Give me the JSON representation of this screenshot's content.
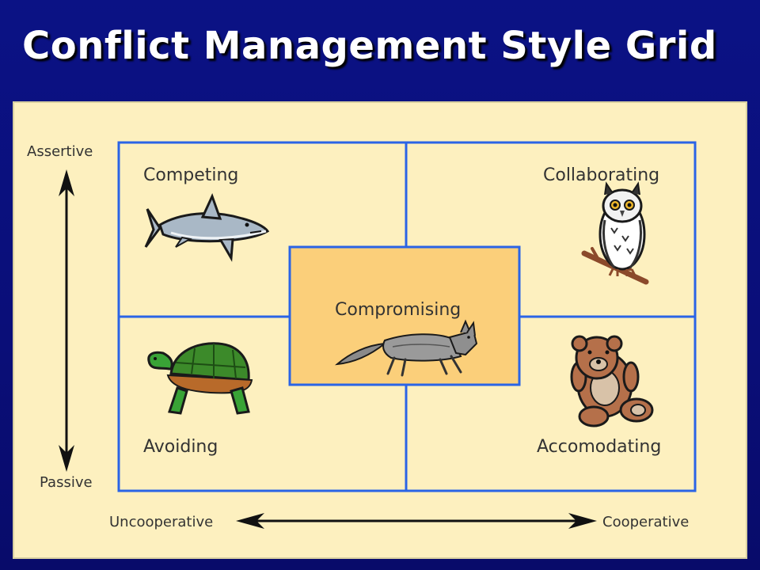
{
  "title": "Conflict Management Style Grid",
  "axes": {
    "vertical_top": "Assertive",
    "vertical_bottom": "Passive",
    "horizontal_left": "Uncooperative",
    "horizontal_right": "Cooperative"
  },
  "quadrants": {
    "top_left": "Competing",
    "top_right": "Collaborating",
    "bottom_left": "Avoiding",
    "bottom_right": "Accomodating",
    "center": "Compromising"
  },
  "icons": {
    "top_left": "shark-icon",
    "top_right": "owl-icon",
    "bottom_left": "turtle-icon",
    "bottom_right": "teddy-bear-icon",
    "center": "fox-icon"
  },
  "colors": {
    "slide_background": "#0a0f7a",
    "panel_background": "#fdf0bf",
    "grid_line": "#2a64e6",
    "center_fill": "#fbcf7a",
    "title_text": "#ffffff"
  }
}
